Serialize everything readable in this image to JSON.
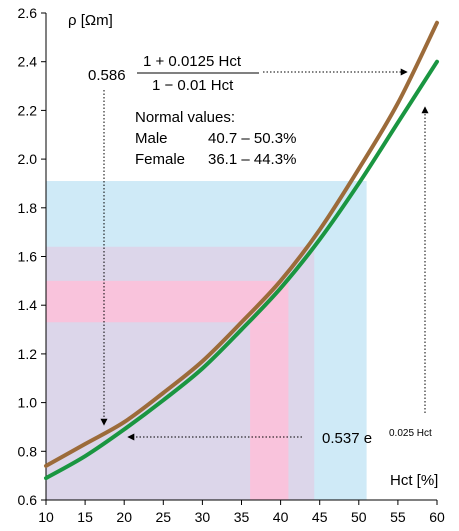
{
  "chart_data": {
    "type": "line",
    "xlabel": "Hct [%]",
    "ylabel": "ρ [Ωm]",
    "xlim": [
      10,
      60
    ],
    "ylim": [
      0.6,
      2.6
    ],
    "x_ticks": [
      "10",
      "15",
      "20",
      "25",
      "30",
      "35",
      "40",
      "45",
      "50",
      "55",
      "60"
    ],
    "y_ticks": [
      "0.6",
      "0.8",
      "1.0",
      "1.2",
      "1.4",
      "1.6",
      "1.8",
      "2.0",
      "2.2",
      "2.4",
      "2.6"
    ],
    "series": [
      {
        "color": "#9c6b3a",
        "x": [
          10,
          15,
          20,
          25,
          30,
          35,
          40,
          45,
          50,
          55,
          60
        ],
        "y": [
          0.74,
          0.83,
          0.92,
          1.04,
          1.17,
          1.33,
          1.5,
          1.71,
          1.96,
          2.23,
          2.56
        ]
      },
      {
        "color": "#1a9641",
        "x": [
          10,
          15,
          20,
          25,
          30,
          35,
          40,
          45,
          50,
          55,
          60
        ],
        "y": [
          0.69,
          0.78,
          0.89,
          1.01,
          1.14,
          1.3,
          1.47,
          1.67,
          1.9,
          2.15,
          2.4
        ]
      }
    ],
    "shaded_regions": [
      {
        "color": "#cfeaf7",
        "x": [
          10,
          51
        ],
        "y": [
          0.6,
          1.91
        ]
      },
      {
        "color": "#dcd6ea",
        "x": [
          10,
          44.3
        ],
        "y": [
          0.6,
          1.64
        ]
      },
      {
        "color": "#f9c3dc",
        "x": [
          10,
          41
        ],
        "y": [
          1.33,
          1.5
        ]
      },
      {
        "color": "#f9c3dc",
        "x": [
          36.1,
          41
        ],
        "y": [
          0.6,
          1.33
        ]
      }
    ],
    "annotations": {
      "formula1_coef": "0.586",
      "formula1_num": "1 + 0.0125 Hct",
      "formula1_den": "1 − 0.01 Hct",
      "normal_title": "Normal values:",
      "male_label": "Male",
      "male_range": "40.7 – 50.3%",
      "female_label": "Female",
      "female_range": "36.1 – 44.3%",
      "formula2_base": "0.537 e",
      "formula2_exp": "0.025 Hct"
    }
  }
}
